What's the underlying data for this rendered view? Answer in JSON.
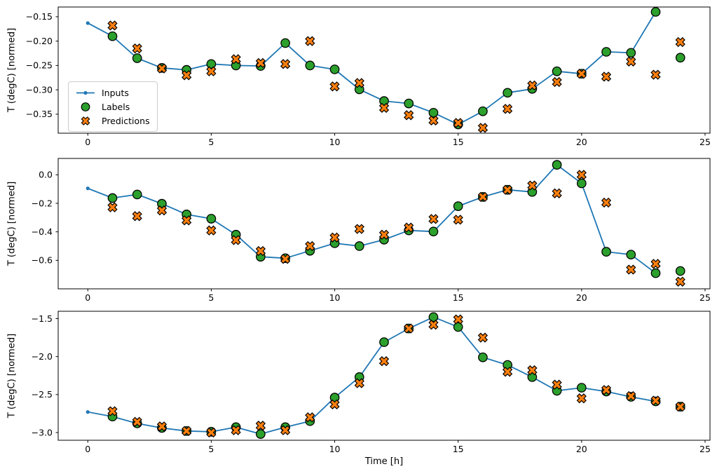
{
  "figure": {
    "xlabel": "Time [h]",
    "xticks": [
      0,
      5,
      10,
      15,
      20,
      25
    ],
    "xlim": [
      -1.2,
      25.2
    ],
    "background": "#ffffff",
    "spine_color": "#000000",
    "legend": {
      "entries": [
        {
          "label": "Inputs",
          "marker": "line-dot",
          "color": "#1f77b4"
        },
        {
          "label": "Labels",
          "marker": "circle",
          "color": "#2ca02c",
          "edge": "#000000"
        },
        {
          "label": "Predictions",
          "marker": "x-filled",
          "color": "#ff7f0e",
          "edge": "#000000"
        }
      ]
    }
  },
  "chart_data": [
    {
      "type": "line",
      "panel": "top",
      "ylabel": "T (degC) [normed]",
      "yticks": [
        -0.15,
        -0.2,
        -0.25,
        -0.3,
        -0.35
      ],
      "ytick_decimals": 2,
      "ylim": [
        -0.389,
        -0.13
      ],
      "x_inputs": [
        0,
        1,
        2,
        3,
        4,
        5,
        6,
        7,
        8,
        9,
        10,
        11,
        12,
        13,
        14,
        15,
        16,
        17,
        18,
        19,
        20,
        21,
        22,
        23
      ],
      "x_targets": [
        1,
        2,
        3,
        4,
        5,
        6,
        7,
        8,
        9,
        10,
        11,
        12,
        13,
        14,
        15,
        16,
        17,
        18,
        19,
        20,
        21,
        22,
        23,
        24
      ],
      "series": [
        {
          "name": "Inputs",
          "values": [
            -0.163,
            -0.19,
            -0.235,
            -0.255,
            -0.259,
            -0.247,
            -0.25,
            -0.251,
            -0.204,
            -0.25,
            -0.258,
            -0.299,
            -0.323,
            -0.328,
            -0.347,
            -0.371,
            -0.344,
            -0.306,
            -0.298,
            -0.262,
            -0.267,
            -0.222,
            -0.224,
            -0.14
          ]
        },
        {
          "name": "Labels",
          "values": [
            -0.19,
            -0.235,
            -0.255,
            -0.259,
            -0.247,
            -0.25,
            -0.251,
            -0.204,
            -0.25,
            -0.258,
            -0.299,
            -0.323,
            -0.328,
            -0.347,
            -0.371,
            -0.344,
            -0.306,
            -0.298,
            -0.262,
            -0.267,
            -0.222,
            -0.224,
            -0.14,
            -0.234
          ]
        },
        {
          "name": "Predictions",
          "values": [
            -0.168,
            -0.215,
            -0.256,
            -0.27,
            -0.262,
            -0.237,
            -0.245,
            -0.247,
            -0.2,
            -0.293,
            -0.286,
            -0.337,
            -0.352,
            -0.363,
            -0.368,
            -0.378,
            -0.339,
            -0.291,
            -0.284,
            -0.267,
            -0.273,
            -0.242,
            -0.269,
            -0.202
          ]
        }
      ]
    },
    {
      "type": "line",
      "panel": "middle",
      "ylabel": "T (degC) [normed]",
      "yticks": [
        0.0,
        -0.2,
        -0.4,
        -0.6
      ],
      "ytick_decimals": 1,
      "ylim": [
        -0.8,
        0.115
      ],
      "x_inputs": [
        0,
        1,
        2,
        3,
        4,
        5,
        6,
        7,
        8,
        9,
        10,
        11,
        12,
        13,
        14,
        15,
        16,
        17,
        18,
        19,
        20,
        21,
        22,
        23
      ],
      "x_targets": [
        1,
        2,
        3,
        4,
        5,
        6,
        7,
        8,
        9,
        10,
        11,
        12,
        13,
        14,
        15,
        16,
        17,
        18,
        19,
        20,
        21,
        22,
        23,
        24
      ],
      "series": [
        {
          "name": "Inputs",
          "values": [
            -0.095,
            -0.163,
            -0.138,
            -0.203,
            -0.278,
            -0.308,
            -0.42,
            -0.575,
            -0.585,
            -0.533,
            -0.48,
            -0.5,
            -0.455,
            -0.39,
            -0.398,
            -0.22,
            -0.155,
            -0.105,
            -0.12,
            0.07,
            -0.06,
            -0.54,
            -0.56,
            -0.69
          ]
        },
        {
          "name": "Labels",
          "values": [
            -0.163,
            -0.138,
            -0.203,
            -0.278,
            -0.308,
            -0.42,
            -0.575,
            -0.585,
            -0.533,
            -0.48,
            -0.5,
            -0.455,
            -0.39,
            -0.398,
            -0.22,
            -0.155,
            -0.105,
            -0.12,
            0.07,
            -0.06,
            -0.54,
            -0.56,
            -0.69,
            -0.675
          ]
        },
        {
          "name": "Predictions",
          "values": [
            -0.228,
            -0.29,
            -0.25,
            -0.32,
            -0.39,
            -0.458,
            -0.535,
            -0.59,
            -0.5,
            -0.44,
            -0.38,
            -0.42,
            -0.37,
            -0.31,
            -0.315,
            -0.155,
            -0.105,
            -0.075,
            -0.13,
            0.0,
            -0.195,
            -0.665,
            -0.625,
            -0.75
          ]
        }
      ]
    },
    {
      "type": "line",
      "panel": "bottom",
      "ylabel": "T (degC) [normed]",
      "yticks": [
        -1.5,
        -2.0,
        -2.5,
        -3.0
      ],
      "ytick_decimals": 1,
      "ylim": [
        -3.102,
        -1.403
      ],
      "x_inputs": [
        0,
        1,
        2,
        3,
        4,
        5,
        6,
        7,
        8,
        9,
        10,
        11,
        12,
        13,
        14,
        15,
        16,
        17,
        18,
        19,
        20,
        21,
        22,
        23
      ],
      "x_targets": [
        1,
        2,
        3,
        4,
        5,
        6,
        7,
        8,
        9,
        10,
        11,
        12,
        13,
        14,
        15,
        16,
        17,
        18,
        19,
        20,
        21,
        22,
        23,
        24
      ],
      "series": [
        {
          "name": "Inputs",
          "values": [
            -2.73,
            -2.79,
            -2.88,
            -2.94,
            -2.98,
            -2.99,
            -2.93,
            -3.02,
            -2.93,
            -2.85,
            -2.54,
            -2.27,
            -1.81,
            -1.63,
            -1.48,
            -1.61,
            -2.01,
            -2.11,
            -2.27,
            -2.45,
            -2.41,
            -2.46,
            -2.53,
            -2.59
          ]
        },
        {
          "name": "Labels",
          "values": [
            -2.79,
            -2.88,
            -2.94,
            -2.98,
            -2.99,
            -2.93,
            -3.02,
            -2.93,
            -2.85,
            -2.54,
            -2.27,
            -1.81,
            -1.63,
            -1.48,
            -1.61,
            -2.01,
            -2.11,
            -2.27,
            -2.45,
            -2.41,
            -2.46,
            -2.53,
            -2.59,
            -2.66
          ]
        },
        {
          "name": "Predictions",
          "values": [
            -2.72,
            -2.86,
            -2.92,
            -2.98,
            -3.0,
            -2.97,
            -2.91,
            -2.97,
            -2.8,
            -2.63,
            -2.35,
            -2.06,
            -1.63,
            -1.58,
            -1.51,
            -1.75,
            -2.2,
            -2.18,
            -2.37,
            -2.55,
            -2.44,
            -2.52,
            -2.58,
            -2.66
          ]
        }
      ]
    }
  ]
}
